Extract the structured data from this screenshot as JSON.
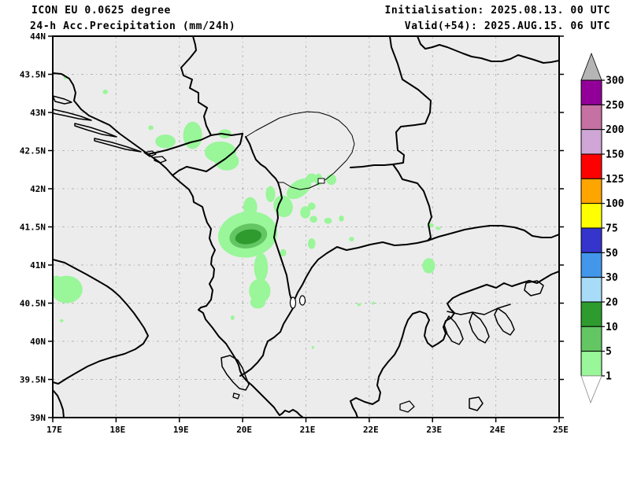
{
  "header": {
    "model_line": "ICON EU 0.0625 degree",
    "product_line": "24-h Acc.Precipitation (mm/24h)",
    "init_line": "Initialisation: 2025.08.13. 00 UTC",
    "valid_line": "Valid(+54): 2025.AUG.15. 06 UTC"
  },
  "map": {
    "extent": {
      "lon_min": 17,
      "lon_max": 25,
      "lat_min": 39,
      "lat_max": 44
    },
    "lon_ticks": [
      {
        "lon": 17,
        "label": "17E"
      },
      {
        "lon": 18,
        "label": "18E"
      },
      {
        "lon": 19,
        "label": "19E"
      },
      {
        "lon": 20,
        "label": "20E"
      },
      {
        "lon": 21,
        "label": "21E"
      },
      {
        "lon": 22,
        "label": "22E"
      },
      {
        "lon": 23,
        "label": "23E"
      },
      {
        "lon": 24,
        "label": "24E"
      },
      {
        "lon": 25,
        "label": "25E"
      }
    ],
    "lat_ticks": [
      {
        "lat": 44,
        "label": "44N"
      },
      {
        "lat": 43.5,
        "label": "43.5N"
      },
      {
        "lat": 43,
        "label": "43N"
      },
      {
        "lat": 42.5,
        "label": "42.5N"
      },
      {
        "lat": 42,
        "label": "42N"
      },
      {
        "lat": 41.5,
        "label": "41.5N"
      },
      {
        "lat": 41,
        "label": "41N"
      },
      {
        "lat": 40.5,
        "label": "40.5N"
      },
      {
        "lat": 40,
        "label": "40N"
      },
      {
        "lat": 39.5,
        "label": "39.5N"
      },
      {
        "lat": 39,
        "label": "39N"
      }
    ],
    "grid": {
      "lon_step": 1,
      "lat_step": 0.5,
      "color": "#b4b4b4"
    },
    "background_color": "#ececec",
    "border_color": "#000000"
  },
  "legend": {
    "boundary_labels": [
      "300",
      "250",
      "200",
      "150",
      "125",
      "100",
      "75",
      "50",
      "30",
      "20",
      "10",
      "5",
      "1"
    ],
    "band_colors_top_to_bottom": [
      "#930099",
      "#C671A3",
      "#CFA6D6",
      "#FF0000",
      "#FFA500",
      "#FFFF00",
      "#3535CD",
      "#4397EB",
      "#A8DBF7",
      "#2D9B2D",
      "#63C663",
      "#99F699"
    ],
    "over_color": "#B5B5B5",
    "under_color": "#FFFFFF"
  },
  "precipitation": {
    "level_colors": {
      "1": "#99F699",
      "2": "#63C663",
      "3": "#2F9B2F"
    },
    "level_ranges_mm": {
      "1": "1-5",
      "2": "5-10",
      "3": "10-20"
    },
    "cells": [
      {
        "lon": 20.08,
        "lat": 41.4,
        "rx": 0.47,
        "ry": 0.3,
        "rot": -10,
        "lv": 1
      },
      {
        "lon": 20.12,
        "lat": 41.76,
        "rx": 0.11,
        "ry": 0.13,
        "rot": 0,
        "lv": 1
      },
      {
        "lon": 20.89,
        "lat": 42.0,
        "rx": 0.22,
        "ry": 0.105,
        "rot": -35,
        "lv": 1
      },
      {
        "lon": 20.64,
        "lat": 41.77,
        "rx": 0.15,
        "ry": 0.145,
        "rot": -20,
        "lv": 1
      },
      {
        "lon": 20.44,
        "lat": 41.93,
        "rx": 0.075,
        "ry": 0.105,
        "rot": 0,
        "lv": 1
      },
      {
        "lon": 21.09,
        "lat": 42.14,
        "rx": 0.085,
        "ry": 0.06,
        "rot": 0,
        "lv": 1
      },
      {
        "lon": 21.09,
        "lat": 41.77,
        "rx": 0.06,
        "ry": 0.05,
        "rot": 0,
        "lv": 1
      },
      {
        "lon": 21.12,
        "lat": 41.6,
        "rx": 0.06,
        "ry": 0.045,
        "rot": 0,
        "lv": 1
      },
      {
        "lon": 20.29,
        "lat": 40.97,
        "rx": 0.11,
        "ry": 0.19,
        "rot": 0,
        "lv": 1
      },
      {
        "lon": 20.27,
        "lat": 40.66,
        "rx": 0.17,
        "ry": 0.16,
        "rot": 0,
        "lv": 1
      },
      {
        "lon": 20.24,
        "lat": 40.51,
        "rx": 0.12,
        "ry": 0.08,
        "rot": 0,
        "lv": 1
      },
      {
        "lon": 20.99,
        "lat": 41.69,
        "rx": 0.08,
        "ry": 0.08,
        "rot": 0,
        "lv": 1
      },
      {
        "lon": 21.09,
        "lat": 41.28,
        "rx": 0.06,
        "ry": 0.07,
        "rot": 0,
        "lv": 1
      },
      {
        "lon": 20.64,
        "lat": 41.16,
        "rx": 0.05,
        "ry": 0.05,
        "rot": 0,
        "lv": 1
      },
      {
        "lon": 19.21,
        "lat": 42.7,
        "rx": 0.15,
        "ry": 0.18,
        "rot": 0,
        "lv": 1
      },
      {
        "lon": 18.78,
        "lat": 42.62,
        "rx": 0.16,
        "ry": 0.09,
        "rot": 0,
        "lv": 1
      },
      {
        "lon": 19.65,
        "lat": 42.48,
        "rx": 0.25,
        "ry": 0.14,
        "rot": 0,
        "lv": 1
      },
      {
        "lon": 19.75,
        "lat": 42.36,
        "rx": 0.19,
        "ry": 0.12,
        "rot": 0,
        "lv": 1
      },
      {
        "lon": 19.72,
        "lat": 42.72,
        "rx": 0.1,
        "ry": 0.06,
        "rot": 0,
        "lv": 1
      },
      {
        "lon": 18.55,
        "lat": 42.8,
        "rx": 0.04,
        "ry": 0.03,
        "rot": 0,
        "lv": 1
      },
      {
        "lon": 17.83,
        "lat": 43.27,
        "rx": 0.04,
        "ry": 0.03,
        "rot": 0,
        "lv": 1
      },
      {
        "lon": 17.2,
        "lat": 43.46,
        "rx": 0.03,
        "ry": 0.025,
        "rot": 0,
        "lv": 1
      },
      {
        "lon": 21.2,
        "lat": 42.12,
        "rx": 0.06,
        "ry": 0.08,
        "rot": 0,
        "lv": 1
      },
      {
        "lon": 21.4,
        "lat": 42.12,
        "rx": 0.08,
        "ry": 0.07,
        "rot": 0,
        "lv": 1
      },
      {
        "lon": 21.35,
        "lat": 41.58,
        "rx": 0.06,
        "ry": 0.04,
        "rot": 0,
        "lv": 1
      },
      {
        "lon": 21.56,
        "lat": 41.61,
        "rx": 0.04,
        "ry": 0.04,
        "rot": 0,
        "lv": 1
      },
      {
        "lon": 21.72,
        "lat": 41.34,
        "rx": 0.04,
        "ry": 0.03,
        "rot": 0,
        "lv": 1
      },
      {
        "lon": 22.97,
        "lat": 41.52,
        "rx": 0.05,
        "ry": 0.03,
        "rot": 0,
        "lv": 1
      },
      {
        "lon": 23.09,
        "lat": 41.48,
        "rx": 0.04,
        "ry": 0.02,
        "rot": 0,
        "lv": 1
      },
      {
        "lon": 22.94,
        "lat": 40.99,
        "rx": 0.1,
        "ry": 0.1,
        "rot": 0,
        "lv": 1
      },
      {
        "lon": 17.22,
        "lat": 40.68,
        "rx": 0.25,
        "ry": 0.18,
        "rot": 0,
        "lv": 1
      },
      {
        "lon": 17.06,
        "lat": 40.76,
        "rx": 0.1,
        "ry": 0.1,
        "rot": 0,
        "lv": 1
      },
      {
        "lon": 17.14,
        "lat": 40.27,
        "rx": 0.03,
        "ry": 0.02,
        "rot": 0,
        "lv": 1
      },
      {
        "lon": 19.84,
        "lat": 40.31,
        "rx": 0.03,
        "ry": 0.03,
        "rot": 0,
        "lv": 1
      },
      {
        "lon": 21.11,
        "lat": 39.92,
        "rx": 0.02,
        "ry": 0.02,
        "rot": 0,
        "lv": 1
      },
      {
        "lon": 21.84,
        "lat": 40.48,
        "rx": 0.03,
        "ry": 0.02,
        "rot": 0,
        "lv": 1
      },
      {
        "lon": 22.06,
        "lat": 40.5,
        "rx": 0.02,
        "ry": 0.02,
        "rot": 0,
        "lv": 1
      },
      {
        "lon": 20.09,
        "lat": 41.38,
        "rx": 0.3,
        "ry": 0.16,
        "rot": -10,
        "lv": 2
      },
      {
        "lon": 20.09,
        "lat": 41.37,
        "rx": 0.21,
        "ry": 0.095,
        "rot": -10,
        "lv": 3
      }
    ]
  }
}
